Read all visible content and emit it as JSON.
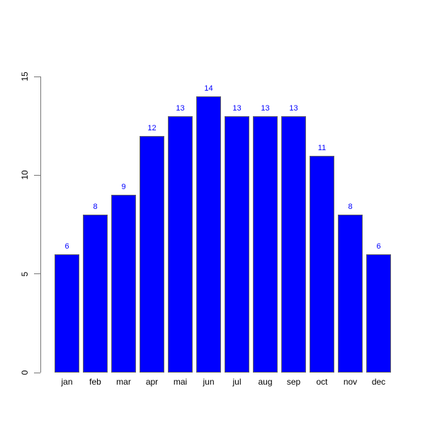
{
  "figure": {
    "background_color": "#ffffff"
  },
  "chart_data": {
    "type": "bar",
    "title": "",
    "xlabel": "",
    "ylabel": "",
    "categories": [
      "jan",
      "feb",
      "mar",
      "apr",
      "mai",
      "jun",
      "jul",
      "aug",
      "sep",
      "oct",
      "nov",
      "dec"
    ],
    "values": [
      6,
      8,
      9,
      12,
      13,
      14,
      13,
      13,
      13,
      11,
      8,
      6
    ],
    "value_labels": [
      "6",
      "8",
      "9",
      "12",
      "13",
      "14",
      "13",
      "13",
      "13",
      "11",
      "8",
      "6"
    ],
    "ylim": [
      0,
      15
    ],
    "yticks": [
      0,
      5,
      10,
      15
    ],
    "ytick_labels": [
      "0",
      "5",
      "10",
      "15"
    ],
    "grid": false,
    "legend_position": "none",
    "bar_fill_color": "#0000ff",
    "bar_border_color": "#666666",
    "value_label_color": "#0000ff",
    "axis_color": "#777777",
    "tick_label_color": "#000000"
  }
}
